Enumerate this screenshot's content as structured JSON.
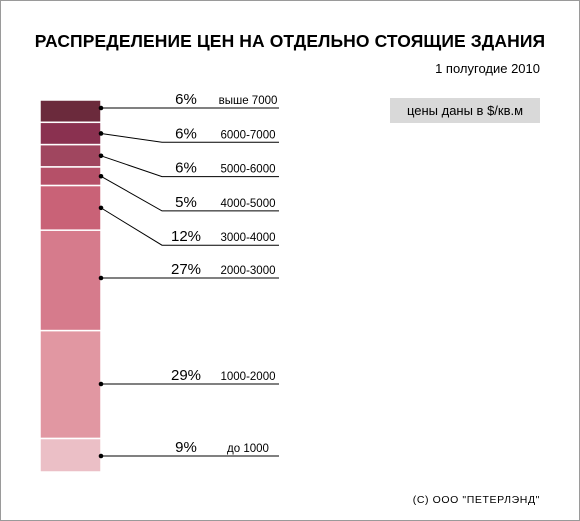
{
  "title": "РАСПРЕДЕЛЕНИЕ ЦЕН НА ОТДЕЛЬНО СТОЯЩИЕ ЗДАНИЯ",
  "subtitle": "1 полугодие 2010",
  "note": "цены даны в $/кв.м",
  "copyright": "(С) ООО \"ПЕТЕРЛЭНД\"",
  "chart_data": {
    "type": "bar",
    "subtype": "100% stacked column",
    "title": "РАСПРЕДЕЛЕНИЕ ЦЕН НА ОТДЕЛЬНО СТОЯЩИЕ ЗДАНИЯ",
    "subtitle": "1 полугодие 2010",
    "unit_note": "цены даны в $/кв.м",
    "categories": [
      "выше 7000",
      "6000-7000",
      "5000-6000",
      "4000-5000",
      "3000-4000",
      "2000-3000",
      "1000-2000",
      "до 1000"
    ],
    "values": [
      6,
      6,
      6,
      5,
      12,
      27,
      29,
      9
    ],
    "labels": [
      "6%",
      "6%",
      "6%",
      "5%",
      "12%",
      "27%",
      "29%",
      "9%"
    ],
    "colors": [
      "#6b2a3c",
      "#8a3150",
      "#a0465f",
      "#b55068",
      "#c96277",
      "#d67b8c",
      "#e197a2",
      "#ebbfc6"
    ],
    "legend": "none",
    "grid": false
  }
}
